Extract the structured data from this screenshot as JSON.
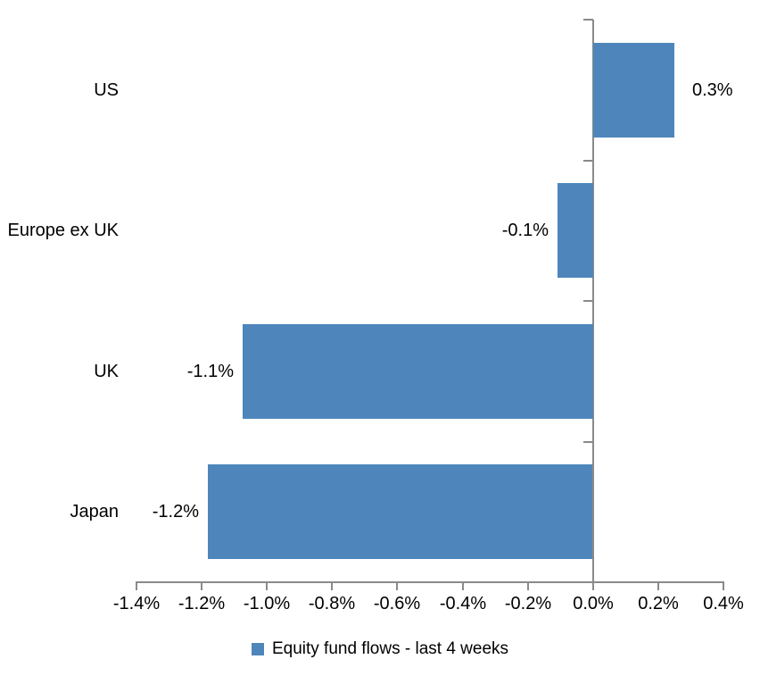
{
  "chart_data": {
    "type": "bar",
    "orientation": "horizontal",
    "title": "",
    "xlabel": "",
    "ylabel": "",
    "categories": [
      "US",
      "Europe ex UK",
      "UK",
      "Japan"
    ],
    "series": [
      {
        "name": "Equity fund flows - last 4 weeks",
        "values": [
          0.3,
          -0.1,
          -1.1,
          -1.2
        ],
        "labels": [
          "0.3%",
          "-0.1%",
          "-1.1%",
          "-1.2%"
        ],
        "plotted_values": [
          0.25,
          -0.11,
          -1.075,
          -1.18
        ]
      }
    ],
    "xlim": [
      -1.4,
      0.4
    ],
    "x_ticks": [
      -1.4,
      -1.2,
      -1.0,
      -0.8,
      -0.6,
      -0.4,
      -0.2,
      0.0,
      0.2,
      0.4
    ],
    "x_tick_labels": [
      "-1.4%",
      "-1.2%",
      "-1.0%",
      "-0.8%",
      "-0.6%",
      "-0.4%",
      "-0.2%",
      "0.0%",
      "0.2%",
      "0.4%"
    ],
    "grid": false,
    "legend": {
      "position": "bottom",
      "entries": [
        "Equity fund flows - last 4 weeks"
      ]
    },
    "colors": {
      "bar": "#4e86bb",
      "axis": "#8a8a8a",
      "text": "#000000",
      "background": "#ffffff"
    }
  }
}
